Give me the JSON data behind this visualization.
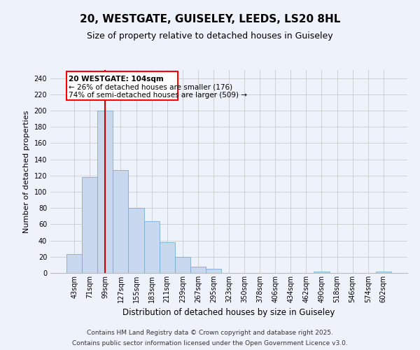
{
  "title1": "20, WESTGATE, GUISELEY, LEEDS, LS20 8HL",
  "title2": "Size of property relative to detached houses in Guiseley",
  "xlabel": "Distribution of detached houses by size in Guiseley",
  "ylabel": "Number of detached properties",
  "bar_labels": [
    "43sqm",
    "71sqm",
    "99sqm",
    "127sqm",
    "155sqm",
    "183sqm",
    "211sqm",
    "239sqm",
    "267sqm",
    "295sqm",
    "323sqm",
    "350sqm",
    "378sqm",
    "406sqm",
    "434sqm",
    "462sqm",
    "490sqm",
    "518sqm",
    "546sqm",
    "574sqm",
    "602sqm"
  ],
  "bar_values": [
    23,
    118,
    200,
    127,
    80,
    64,
    38,
    20,
    8,
    5,
    0,
    0,
    0,
    0,
    0,
    0,
    2,
    0,
    0,
    0,
    2
  ],
  "bar_color": "#c8d8ee",
  "bar_edge_color": "#7aacd4",
  "grid_color": "#cccccc",
  "vline_index": 2,
  "vline_color": "#cc0000",
  "annotation_title": "20 WESTGATE: 104sqm",
  "annotation_line1": "← 26% of detached houses are smaller (176)",
  "annotation_line2": "74% of semi-detached houses are larger (509) →",
  "ylim": [
    0,
    250
  ],
  "yticks": [
    0,
    20,
    40,
    60,
    80,
    100,
    120,
    140,
    160,
    180,
    200,
    220,
    240
  ],
  "footnote1": "Contains HM Land Registry data © Crown copyright and database right 2025.",
  "footnote2": "Contains public sector information licensed under the Open Government Licence v3.0.",
  "background_color": "#eef2fb",
  "title1_fontsize": 11,
  "title2_fontsize": 9,
  "xlabel_fontsize": 8.5,
  "ylabel_fontsize": 8,
  "tick_fontsize": 7,
  "footnote_fontsize": 6.5
}
